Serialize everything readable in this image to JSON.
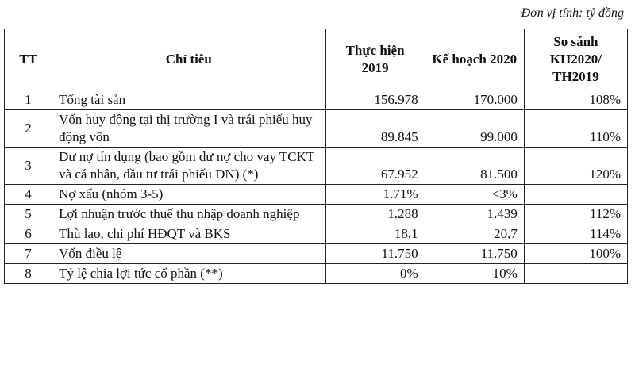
{
  "unit_note": "Đơn vị tính: tỷ đồng",
  "headers": [
    "TT",
    "Chỉ tiêu",
    "Thực hiện 2019",
    "Kế hoạch 2020",
    "So sánh KH2020/ TH2019"
  ],
  "rows": [
    {
      "tt": "1",
      "name": "Tổng tài sản",
      "th2019": "156.978",
      "kh2020": "170.000",
      "ratio": "108%"
    },
    {
      "tt": "2",
      "name": "Vốn huy động tại thị trường I và trái phiếu huy động vốn",
      "th2019": "89.845",
      "kh2020": "99.000",
      "ratio": "110%"
    },
    {
      "tt": "3",
      "name": "Dư nợ tín dụng (bao gồm dư nợ cho vay TCKT và cá nhân, đầu tư trái phiếu DN) (*)",
      "th2019": "67.952",
      "kh2020": "81.500",
      "ratio": "120%"
    },
    {
      "tt": "4",
      "name": "Nợ xấu (nhóm 3-5)",
      "th2019": "1.71%",
      "kh2020": "<3%",
      "ratio": ""
    },
    {
      "tt": "5",
      "name": "Lợi nhuận trước thuế thu nhập doanh nghiệp",
      "th2019": "1.288",
      "kh2020": "1.439",
      "ratio": "112%"
    },
    {
      "tt": "6",
      "name": "Thù lao, chi phí HĐQT và BKS",
      "th2019": "18,1",
      "kh2020": "20,7",
      "ratio": "114%"
    },
    {
      "tt": "7",
      "name": "Vốn điều lệ",
      "th2019": "11.750",
      "kh2020": "11.750",
      "ratio": "100%"
    },
    {
      "tt": "8",
      "name": "Tỷ lệ chia lợi tức cổ phần (**)",
      "th2019": "0%",
      "kh2020": "10%",
      "ratio": ""
    }
  ]
}
